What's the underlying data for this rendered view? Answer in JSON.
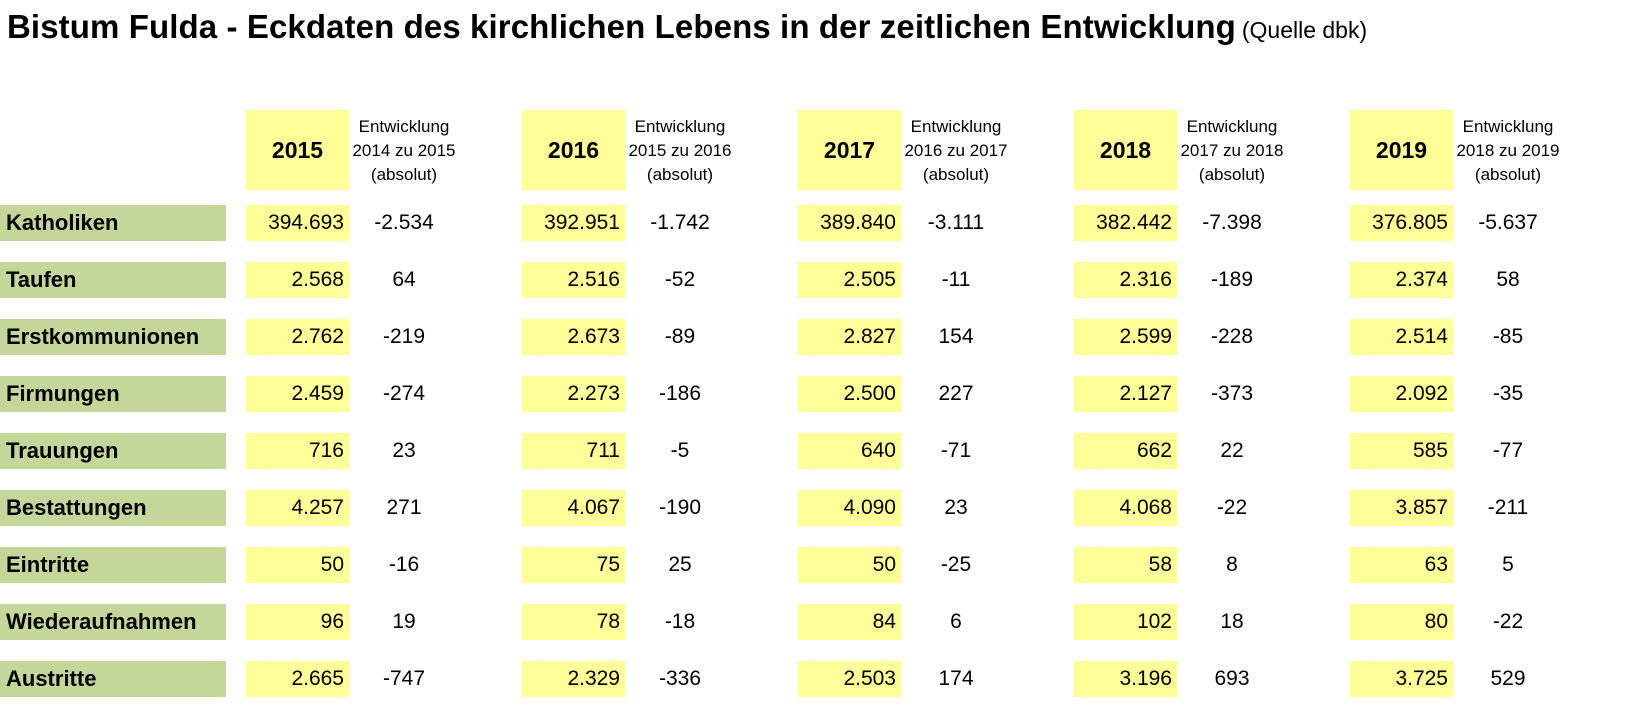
{
  "title": "Bistum Fulda - Eckdaten des kirchlichen Lebens in der zeitlichen Entwicklung",
  "source": "(Quelle dbk)",
  "colors": {
    "year_fill": "#ffff99",
    "label_fill": "#c4d79b"
  },
  "columns": [
    {
      "year": "2015",
      "dev": [
        "Entwicklung",
        "2014 zu 2015",
        "(absolut)"
      ]
    },
    {
      "year": "2016",
      "dev": [
        "Entwicklung",
        "2015 zu 2016",
        "(absolut)"
      ]
    },
    {
      "year": "2017",
      "dev": [
        "Entwicklung",
        "2016 zu 2017",
        "(absolut)"
      ]
    },
    {
      "year": "2018",
      "dev": [
        "Entwicklung",
        "2017 zu 2018",
        "(absolut)"
      ]
    },
    {
      "year": "2019",
      "dev": [
        "Entwicklung",
        "2018 zu 2019",
        "(absolut)"
      ]
    }
  ],
  "rows": [
    {
      "label": "Katholiken",
      "values": [
        "394.693",
        "392.951",
        "389.840",
        "382.442",
        "376.805"
      ],
      "deltas": [
        "-2.534",
        "-1.742",
        "-3.111",
        "-7.398",
        "-5.637"
      ]
    },
    {
      "label": "Taufen",
      "values": [
        "2.568",
        "2.516",
        "2.505",
        "2.316",
        "2.374"
      ],
      "deltas": [
        "64",
        "-52",
        "-11",
        "-189",
        "58"
      ]
    },
    {
      "label": "Erstkommunionen",
      "values": [
        "2.762",
        "2.673",
        "2.827",
        "2.599",
        "2.514"
      ],
      "deltas": [
        "-219",
        "-89",
        "154",
        "-228",
        "-85"
      ]
    },
    {
      "label": "Firmungen",
      "values": [
        "2.459",
        "2.273",
        "2.500",
        "2.127",
        "2.092"
      ],
      "deltas": [
        "-274",
        "-186",
        "227",
        "-373",
        "-35"
      ]
    },
    {
      "label": "Trauungen",
      "values": [
        "716",
        "711",
        "640",
        "662",
        "585"
      ],
      "deltas": [
        "23",
        "-5",
        "-71",
        "22",
        "-77"
      ]
    },
    {
      "label": "Bestattungen",
      "values": [
        "4.257",
        "4.067",
        "4.090",
        "4.068",
        "3.857"
      ],
      "deltas": [
        "271",
        "-190",
        "23",
        "-22",
        "-211"
      ]
    },
    {
      "label": "Eintritte",
      "values": [
        "50",
        "75",
        "50",
        "58",
        "63"
      ],
      "deltas": [
        "-16",
        "25",
        "-25",
        "8",
        "5"
      ]
    },
    {
      "label": "Wiederaufnahmen",
      "values": [
        "96",
        "78",
        "84",
        "102",
        "80"
      ],
      "deltas": [
        "19",
        "-18",
        "6",
        "18",
        "-22"
      ]
    },
    {
      "label": "Austritte",
      "values": [
        "2.665",
        "2.329",
        "2.503",
        "3.196",
        "3.725"
      ],
      "deltas": [
        "-747",
        "-336",
        "174",
        "693",
        "529"
      ]
    }
  ]
}
